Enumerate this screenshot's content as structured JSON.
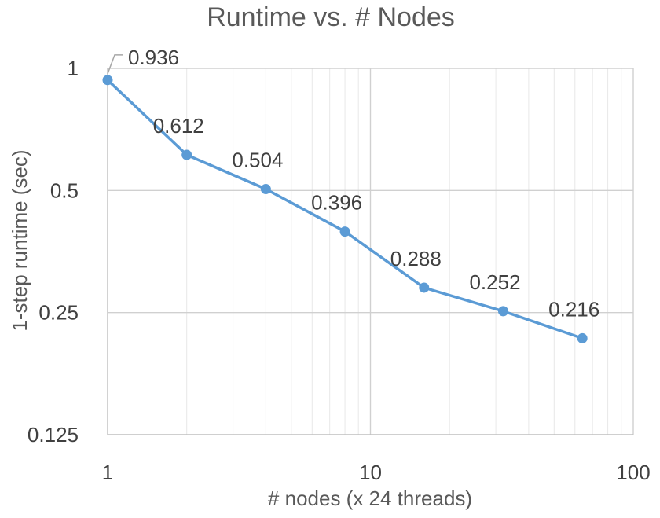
{
  "chart_data": {
    "type": "line",
    "title": "Runtime vs. # Nodes",
    "xlabel": "# nodes (x 24 threads)",
    "ylabel": "1-step runtime (sec)",
    "x_scale": "log10",
    "y_scale": "log2",
    "xlim": [
      1,
      100
    ],
    "ylim": [
      0.125,
      1
    ],
    "x_ticks": [
      1,
      10,
      100
    ],
    "x_tick_labels": [
      "1",
      "10",
      "100"
    ],
    "y_ticks": [
      1,
      0.5,
      0.25,
      0.125
    ],
    "y_tick_labels": [
      "1",
      "0.5",
      "0.25",
      "0.125"
    ],
    "grid": true,
    "legend": "none",
    "series": [
      {
        "color": "#5b9bd5",
        "x": [
          1,
          2,
          4,
          8,
          16,
          32,
          64
        ],
        "values": [
          0.936,
          0.612,
          0.504,
          0.396,
          0.288,
          0.252,
          0.216
        ],
        "labels": [
          "0.936",
          "0.612",
          "0.504",
          "0.396",
          "0.288",
          "0.252",
          "0.216"
        ]
      }
    ]
  }
}
